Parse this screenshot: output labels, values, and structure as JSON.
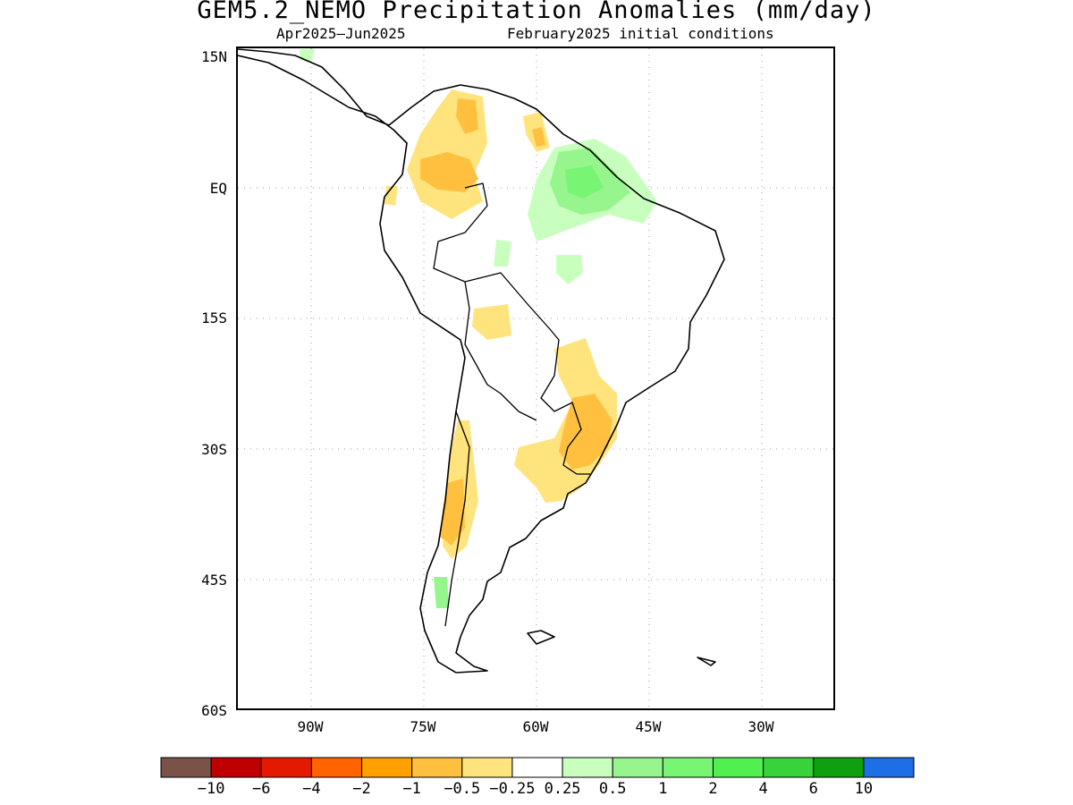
{
  "title": "GEM5.2_NEMO Precipitation Anomalies (mm/day)",
  "period": "Apr2025—Jun2025",
  "init": "February2025 initial conditions",
  "lat_labels": [
    "15N",
    "EQ",
    "15S",
    "30S",
    "45S",
    "60S"
  ],
  "lon_labels": [
    "90W",
    "75W",
    "60W",
    "45W",
    "30W"
  ],
  "map_extent": {
    "lon": [
      -100,
      -20
    ],
    "lat": [
      -60,
      15
    ]
  },
  "colorbar": {
    "colors": [
      "#7a5248",
      "#c00000",
      "#e41a00",
      "#ff6400",
      "#ffa000",
      "#ffc040",
      "#ffe37d",
      "#ffffff",
      "#c8ffbe",
      "#96f58c",
      "#78f573",
      "#50f050",
      "#37d23c",
      "#0fa00f",
      "#1e6ee6"
    ],
    "labels": [
      "−10",
      "−6",
      "−4",
      "−2",
      "−1",
      "−0.5",
      "−0.25",
      "0.25",
      "0.5",
      "1",
      "2",
      "4",
      "6",
      "10"
    ]
  }
}
